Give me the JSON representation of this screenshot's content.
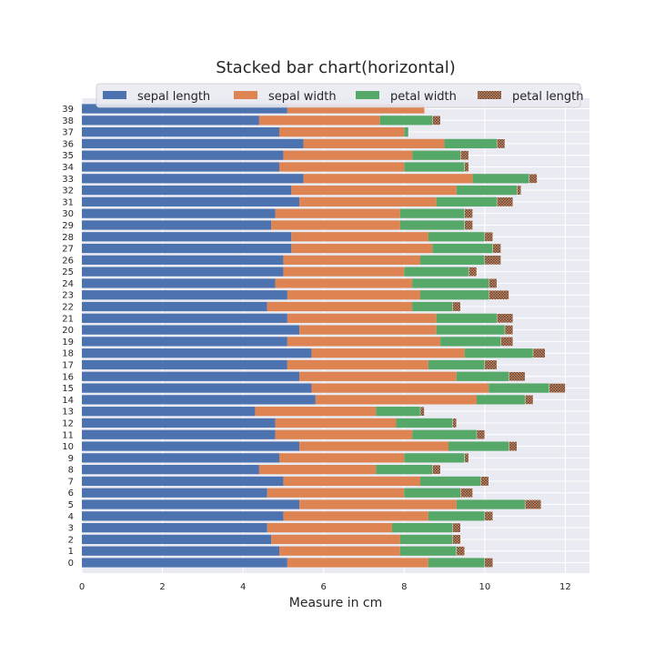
{
  "chart_data": {
    "type": "bar",
    "orientation": "horizontal",
    "stacked": true,
    "title": "Stacked bar chart(horizontal)",
    "xlabel": "Measure in cm",
    "ylabel": "",
    "xlim": [
      0,
      12.6
    ],
    "x_ticks": [
      "0",
      "2",
      "4",
      "6",
      "8",
      "10",
      "12"
    ],
    "grid": true,
    "legend_position": "top",
    "background": "#eaeaf2",
    "categories": [
      "0",
      "1",
      "2",
      "3",
      "4",
      "5",
      "6",
      "7",
      "8",
      "9",
      "10",
      "11",
      "12",
      "13",
      "14",
      "15",
      "16",
      "17",
      "18",
      "19",
      "20",
      "21",
      "22",
      "23",
      "24",
      "25",
      "26",
      "27",
      "28",
      "29",
      "30",
      "31",
      "32",
      "33",
      "34",
      "35",
      "36",
      "37",
      "38",
      "39"
    ],
    "series": [
      {
        "name": "sepal length",
        "color": "#4c72b0",
        "hatch": false,
        "values": [
          5.1,
          4.9,
          4.7,
          4.6,
          5.0,
          5.4,
          4.6,
          5.0,
          4.4,
          4.9,
          5.4,
          4.8,
          4.8,
          4.3,
          5.8,
          5.7,
          5.4,
          5.1,
          5.7,
          5.1,
          5.4,
          5.1,
          4.6,
          5.1,
          4.8,
          5.0,
          5.0,
          5.2,
          5.2,
          4.7,
          4.8,
          5.4,
          5.2,
          5.5,
          4.9,
          5.0,
          5.5,
          4.9,
          4.4,
          5.1
        ]
      },
      {
        "name": "sepal width",
        "color": "#dd8452",
        "hatch": false,
        "values": [
          3.5,
          3.0,
          3.2,
          3.1,
          3.6,
          3.9,
          3.4,
          3.4,
          2.9,
          3.1,
          3.7,
          3.4,
          3.0,
          3.0,
          4.0,
          4.4,
          3.9,
          3.5,
          3.8,
          3.8,
          3.4,
          3.7,
          3.6,
          3.3,
          3.4,
          3.0,
          3.4,
          3.5,
          3.4,
          3.2,
          3.1,
          3.4,
          4.1,
          4.2,
          3.1,
          3.2,
          3.5,
          3.1,
          3.0,
          3.4
        ]
      },
      {
        "name": "petal width",
        "color": "#55a868",
        "hatch": false,
        "values": [
          1.4,
          1.4,
          1.3,
          1.5,
          1.4,
          1.7,
          1.4,
          1.5,
          1.4,
          1.5,
          1.5,
          1.6,
          1.4,
          1.1,
          1.2,
          1.5,
          1.3,
          1.4,
          1.7,
          1.5,
          1.7,
          1.5,
          1.0,
          1.7,
          1.9,
          1.6,
          1.6,
          1.5,
          1.4,
          1.6,
          1.6,
          1.5,
          1.5,
          1.4,
          1.5,
          1.2,
          1.3,
          0.1,
          1.3,
          0.0
        ]
      },
      {
        "name": "petal length",
        "color": "#dd8452",
        "hatch": true,
        "values": [
          0.2,
          0.2,
          0.2,
          0.2,
          0.2,
          0.4,
          0.3,
          0.2,
          0.2,
          0.1,
          0.2,
          0.2,
          0.1,
          0.1,
          0.2,
          0.4,
          0.4,
          0.3,
          0.3,
          0.3,
          0.2,
          0.4,
          0.2,
          0.5,
          0.2,
          0.2,
          0.4,
          0.2,
          0.2,
          0.2,
          0.2,
          0.4,
          0.1,
          0.2,
          0.1,
          0.2,
          0.2,
          0.0,
          0.2,
          0.0
        ]
      }
    ]
  }
}
